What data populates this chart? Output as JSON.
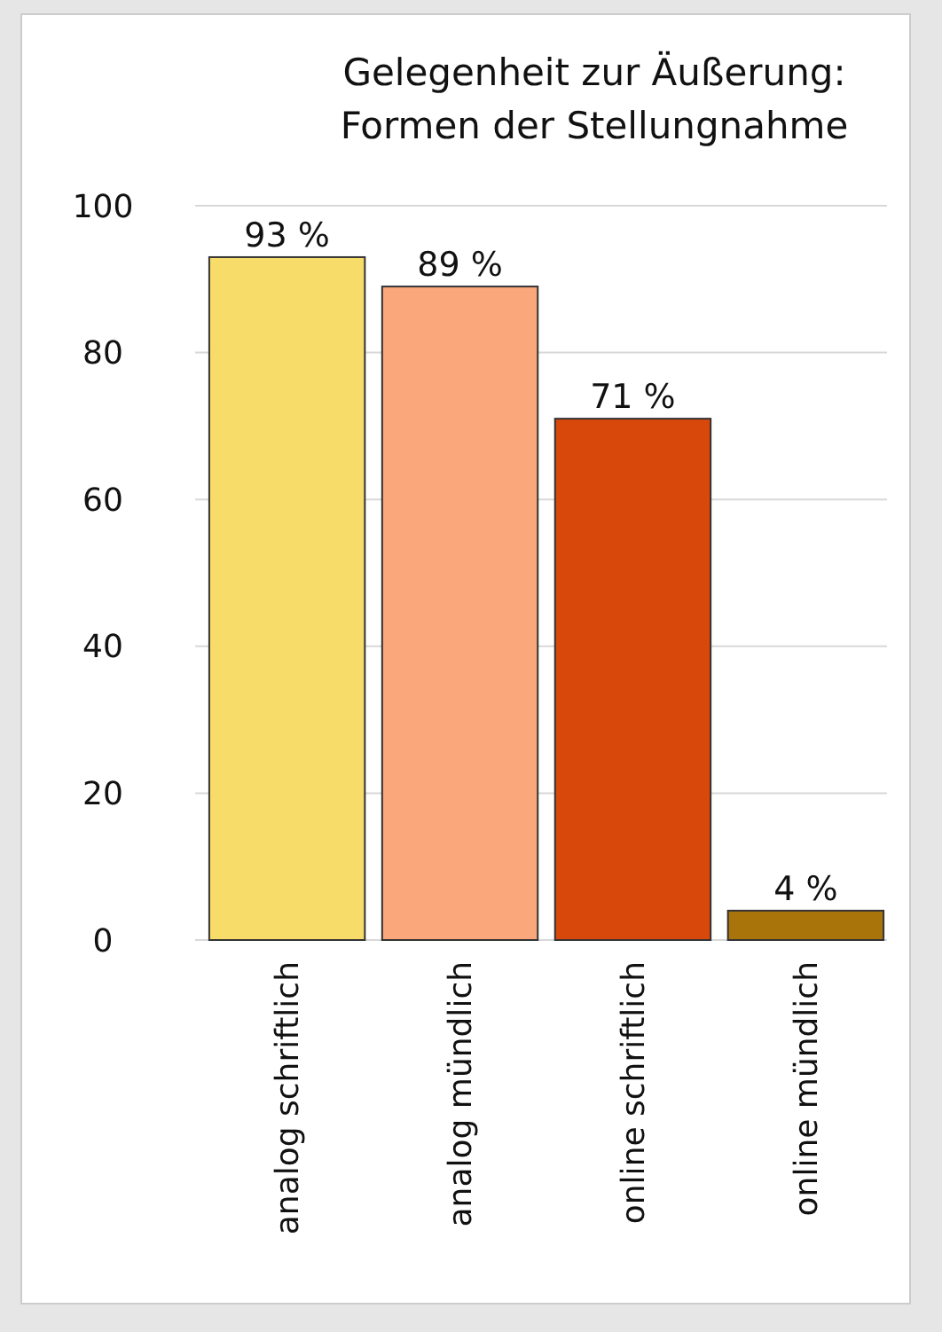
{
  "chart_data": {
    "type": "bar",
    "title": "Gelegenheit zur Äußerung:\nFormen der Stellungnahme",
    "categories": [
      "analog schriftlich",
      "analog mündlich",
      "online schriftlich",
      "online mündlich"
    ],
    "values": [
      93,
      89,
      71,
      4
    ],
    "colors": [
      "#f7dc6a",
      "#f9a77b",
      "#d9480b",
      "#a9750b"
    ],
    "value_labels": [
      "93 %",
      "89 %",
      "71 %",
      "4 %"
    ],
    "ylim": [
      0,
      100
    ],
    "yticks": [
      0,
      20,
      40,
      60,
      80,
      100
    ],
    "grid": "y"
  }
}
